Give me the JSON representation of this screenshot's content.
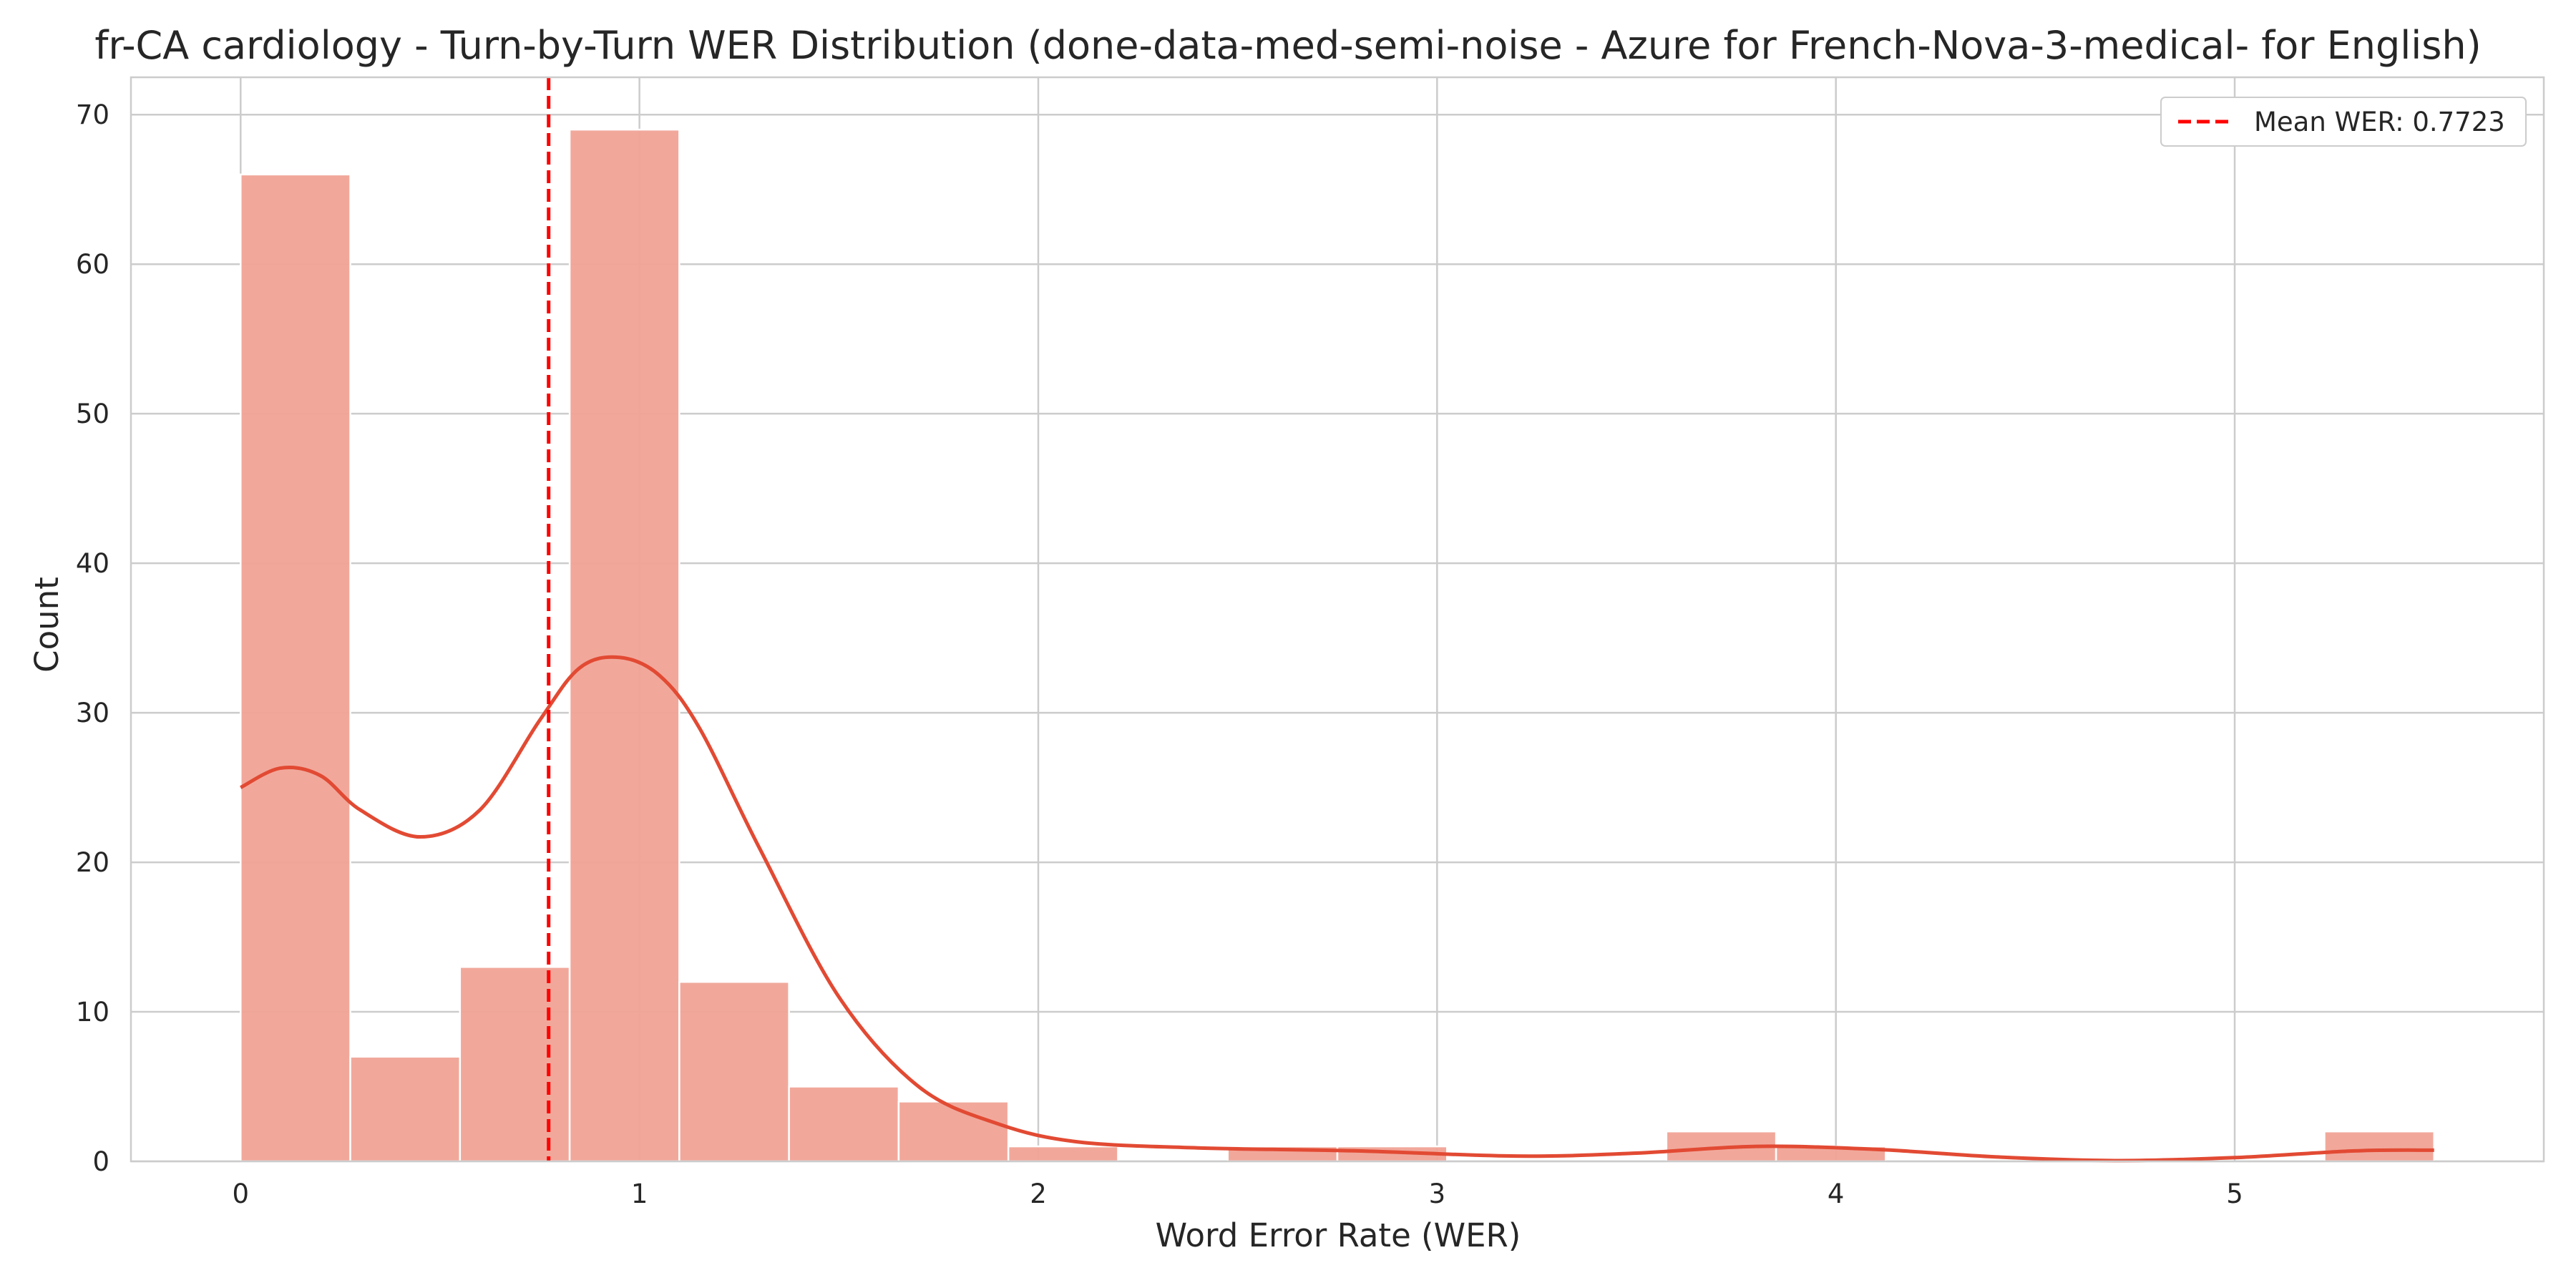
{
  "chart_data": {
    "type": "histogram",
    "title": "fr-CA cardiology - Turn-by-Turn WER Distribution (done-data-med-semi-noise - Azure for French-Nova-3-medical- for English)",
    "xlabel": "Word Error Rate (WER)",
    "ylabel": "Count",
    "xlim": [
      -0.275,
      5.775
    ],
    "ylim": [
      0,
      72.5
    ],
    "xticks": [
      0,
      1,
      2,
      3,
      4,
      5
    ],
    "yticks": [
      0,
      10,
      20,
      30,
      40,
      50,
      60,
      70
    ],
    "grid": true,
    "legend": {
      "position": "top-right",
      "entries": [
        "Mean WER: 0.7723"
      ]
    },
    "bins": [
      {
        "x0": 0.0,
        "x1": 0.275,
        "count": 66
      },
      {
        "x0": 0.275,
        "x1": 0.55,
        "count": 7
      },
      {
        "x0": 0.55,
        "x1": 0.825,
        "count": 13
      },
      {
        "x0": 0.825,
        "x1": 1.1,
        "count": 69
      },
      {
        "x0": 1.1,
        "x1": 1.375,
        "count": 12
      },
      {
        "x0": 1.375,
        "x1": 1.65,
        "count": 5
      },
      {
        "x0": 1.65,
        "x1": 1.925,
        "count": 4
      },
      {
        "x0": 1.925,
        "x1": 2.2,
        "count": 1
      },
      {
        "x0": 2.2,
        "x1": 2.475,
        "count": 0
      },
      {
        "x0": 2.475,
        "x1": 2.75,
        "count": 1
      },
      {
        "x0": 2.75,
        "x1": 3.025,
        "count": 1
      },
      {
        "x0": 3.025,
        "x1": 3.3,
        "count": 0
      },
      {
        "x0": 3.3,
        "x1": 3.575,
        "count": 0
      },
      {
        "x0": 3.575,
        "x1": 3.85,
        "count": 2
      },
      {
        "x0": 3.85,
        "x1": 4.125,
        "count": 1
      },
      {
        "x0": 4.125,
        "x1": 4.4,
        "count": 0
      },
      {
        "x0": 4.4,
        "x1": 4.675,
        "count": 0
      },
      {
        "x0": 4.675,
        "x1": 4.95,
        "count": 0
      },
      {
        "x0": 4.95,
        "x1": 5.225,
        "count": 0
      },
      {
        "x0": 5.225,
        "x1": 5.5,
        "count": 2
      }
    ],
    "kde": {
      "x": [
        0,
        0.1,
        0.2,
        0.3,
        0.45,
        0.6,
        0.75,
        0.85,
        0.95,
        1.05,
        1.15,
        1.3,
        1.5,
        1.7,
        1.9,
        2.1,
        2.4,
        2.8,
        3.2,
        3.5,
        3.8,
        4.1,
        4.4,
        4.7,
        5.0,
        5.3,
        5.5
      ],
      "y": [
        25,
        26.3,
        25.8,
        23.5,
        21.7,
        23.5,
        29.5,
        33,
        33.7,
        32.5,
        29,
        21,
        11,
        5,
        2.5,
        1.3,
        0.9,
        0.7,
        0.35,
        0.55,
        1.0,
        0.8,
        0.3,
        0.05,
        0.25,
        0.7,
        0.75
      ]
    },
    "mean_line": {
      "x": 0.7723,
      "label": "Mean WER: 0.7723"
    },
    "colors": {
      "bar": "#f0a396",
      "kde": "#e24a33",
      "mean_line": "#ff0000",
      "grid": "#cccccc",
      "axes_edge": "#cccccc"
    }
  }
}
